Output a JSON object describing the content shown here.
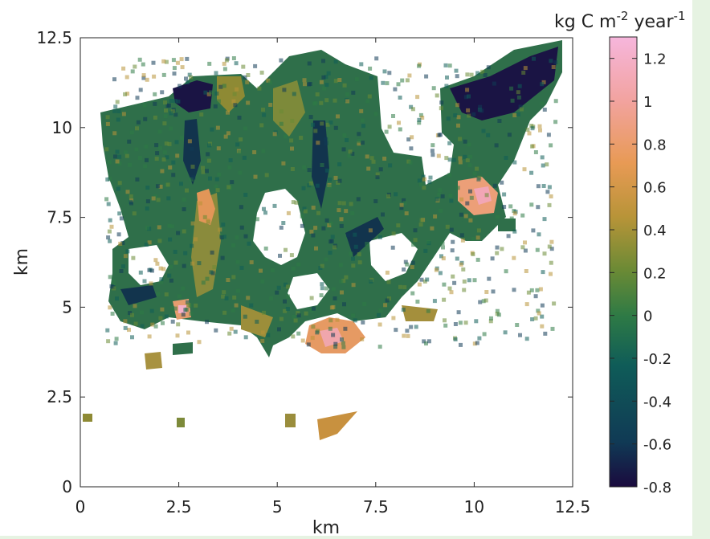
{
  "chart_data": {
    "type": "heatmap",
    "xlabel": "km",
    "ylabel": "km",
    "xlim": [
      0,
      12.5
    ],
    "ylim": [
      0,
      12.5
    ],
    "x_ticks": [
      "0",
      "2.5",
      "5",
      "7.5",
      "10",
      "12.5"
    ],
    "y_ticks": [
      "0",
      "2.5",
      "5",
      "7.5",
      "10",
      "12.5"
    ],
    "grid": false,
    "colorbar": {
      "label_prefix": "kg C m",
      "label_exp1": "-2",
      "label_mid": " year",
      "label_exp2": "-1",
      "range": [
        -0.8,
        1.3
      ],
      "ticks": [
        "1.2",
        "1",
        "0.8",
        "0.6",
        "0.4",
        "0.2",
        "0",
        "-0.2",
        "-0.4",
        "-0.6",
        "-0.8"
      ],
      "colors": [
        "#1a0a3e",
        "#103a55",
        "#0f5c58",
        "#2e7a45",
        "#6a8a35",
        "#b89438",
        "#e89a55",
        "#f2a3a0",
        "#f6b6dc"
      ]
    }
  }
}
